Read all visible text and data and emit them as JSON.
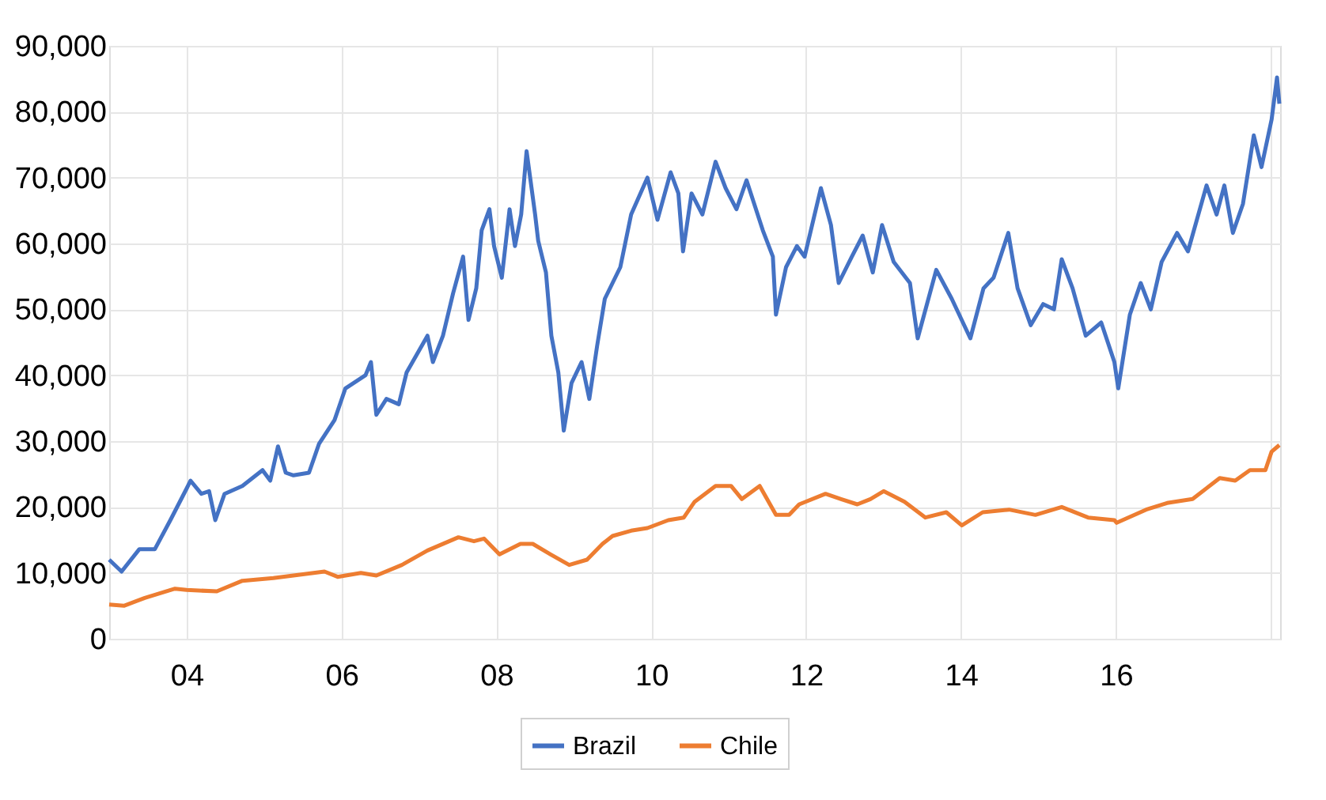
{
  "chart_data": {
    "type": "line",
    "xlim": [
      2003,
      2018.12
    ],
    "ylim": [
      0,
      90000
    ],
    "xticks": [
      {
        "value": 2004,
        "label": "04"
      },
      {
        "value": 2006,
        "label": "06"
      },
      {
        "value": 2008,
        "label": "08"
      },
      {
        "value": 2010,
        "label": "10"
      },
      {
        "value": 2012,
        "label": "12"
      },
      {
        "value": 2014,
        "label": "14"
      },
      {
        "value": 2016,
        "label": "16"
      },
      {
        "value": 2018,
        "label": null
      }
    ],
    "yticks": [
      0,
      {
        "value": 10000,
        "label": "10,000"
      },
      {
        "value": 20000,
        "label": "20,000"
      },
      {
        "value": 30000,
        "label": "30,000"
      },
      {
        "value": 40000,
        "label": "40,000"
      },
      {
        "value": 50000,
        "label": "50,000"
      },
      {
        "value": 60000,
        "label": "60,000"
      },
      {
        "value": 70000,
        "label": "70,000"
      },
      {
        "value": 80000,
        "label": "80,000"
      },
      {
        "value": 90000,
        "label": "90,000"
      }
    ],
    "grid": true,
    "legend": "bottom",
    "line_style": "solid",
    "series": [
      {
        "name": "Brazil",
        "color": "#4472c4",
        "x": [
          2003.0,
          2003.16,
          2003.39,
          2003.59,
          2003.79,
          2004.0,
          2004.05,
          2004.19,
          2004.29,
          2004.37,
          2004.49,
          2004.72,
          2004.98,
          2005.08,
          2005.18,
          2005.28,
          2005.38,
          2005.58,
          2005.71,
          2005.91,
          2006.05,
          2006.31,
          2006.38,
          2006.45,
          2006.58,
          2006.74,
          2006.84,
          2007.11,
          2007.18,
          2007.31,
          2007.44,
          2007.57,
          2007.64,
          2007.74,
          2007.81,
          2007.91,
          2007.97,
          2008.07,
          2008.17,
          2008.24,
          2008.32,
          2008.39,
          2008.5,
          2008.54,
          2008.64,
          2008.71,
          2008.8,
          2008.87,
          2008.97,
          2009.1,
          2009.2,
          2009.3,
          2009.4,
          2009.5,
          2009.6,
          2009.74,
          2009.95,
          2010.08,
          2010.25,
          2010.35,
          2010.41,
          2010.52,
          2010.66,
          2010.83,
          2010.96,
          2011.1,
          2011.23,
          2011.44,
          2011.57,
          2011.61,
          2011.74,
          2011.88,
          2011.98,
          2012.19,
          2012.32,
          2012.42,
          2012.59,
          2012.73,
          2012.86,
          2012.98,
          2013.13,
          2013.34,
          2013.44,
          2013.68,
          2013.88,
          2014.12,
          2014.29,
          2014.42,
          2014.61,
          2014.73,
          2014.9,
          2015.06,
          2015.2,
          2015.3,
          2015.44,
          2015.61,
          2015.81,
          2015.98,
          2016.03,
          2016.18,
          2016.32,
          2016.45,
          2016.59,
          2016.79,
          2016.93,
          2017.17,
          2017.3,
          2017.4,
          2017.51,
          2017.64,
          2017.78,
          2017.88,
          2018.01,
          2018.08,
          2018.11
        ],
        "values": [
          12000,
          10200,
          13600,
          13600,
          18000,
          22800,
          24000,
          22000,
          22400,
          18000,
          22000,
          23200,
          25600,
          24000,
          29200,
          25200,
          24800,
          25200,
          29600,
          33200,
          38000,
          40000,
          42000,
          34000,
          36400,
          35600,
          40400,
          46000,
          42000,
          46000,
          52400,
          58000,
          48400,
          53200,
          62000,
          65200,
          59600,
          54800,
          65200,
          59600,
          64400,
          74000,
          64400,
          60400,
          55600,
          46000,
          40400,
          31600,
          38800,
          42000,
          36400,
          44400,
          51600,
          54000,
          56400,
          64400,
          70000,
          63600,
          70800,
          67600,
          58800,
          67600,
          64400,
          72400,
          68400,
          65200,
          69600,
          62000,
          58000,
          49200,
          56400,
          59600,
          58000,
          68400,
          62800,
          54000,
          58000,
          61200,
          55600,
          62800,
          57200,
          54000,
          45600,
          56000,
          51600,
          45600,
          53200,
          54800,
          61600,
          53200,
          47600,
          50800,
          50000,
          57600,
          53200,
          46000,
          48000,
          42000,
          38000,
          49200,
          54000,
          50000,
          57200,
          61600,
          58800,
          68800,
          64400,
          68800,
          61600,
          66000,
          76400,
          71600,
          78800,
          85200,
          81200
        ]
      },
      {
        "name": "Chile",
        "color": "#ed7d31",
        "x": [
          2003.0,
          2003.19,
          2003.46,
          2003.85,
          2004.0,
          2004.39,
          2004.72,
          2005.12,
          2005.38,
          2005.78,
          2005.95,
          2006.25,
          2006.45,
          2006.78,
          2007.11,
          2007.51,
          2007.71,
          2007.84,
          2008.04,
          2008.31,
          2008.47,
          2008.7,
          2008.94,
          2009.17,
          2009.37,
          2009.5,
          2009.74,
          2009.95,
          2010.22,
          2010.42,
          2010.56,
          2010.83,
          2011.03,
          2011.17,
          2011.4,
          2011.61,
          2011.78,
          2011.91,
          2012.25,
          2012.45,
          2012.66,
          2012.83,
          2013.0,
          2013.27,
          2013.54,
          2013.81,
          2014.01,
          2014.28,
          2014.62,
          2014.96,
          2015.3,
          2015.64,
          2015.98,
          2016.01,
          2016.39,
          2016.66,
          2016.99,
          2017.34,
          2017.54,
          2017.73,
          2017.93,
          2018.01,
          2018.11
        ],
        "values": [
          5200,
          5000,
          6200,
          7600,
          7400,
          7200,
          8800,
          9200,
          9600,
          10200,
          9400,
          10000,
          9600,
          11200,
          13400,
          15400,
          14800,
          15200,
          12800,
          14400,
          14400,
          12800,
          11200,
          12000,
          14400,
          15600,
          16400,
          16800,
          18000,
          18400,
          20800,
          23200,
          23200,
          21200,
          23200,
          18800,
          18800,
          20400,
          22000,
          21200,
          20400,
          21200,
          22400,
          20800,
          18400,
          19200,
          17200,
          19200,
          19600,
          18800,
          20000,
          18400,
          18000,
          17600,
          19600,
          20600,
          21200,
          24400,
          24000,
          25600,
          25600,
          28400,
          29400
        ]
      }
    ]
  }
}
